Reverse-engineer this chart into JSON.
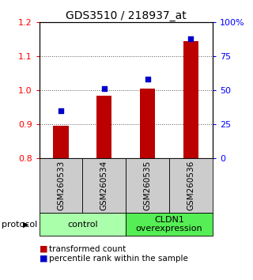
{
  "title": "GDS3510 / 218937_at",
  "samples": [
    "GSM260533",
    "GSM260534",
    "GSM260535",
    "GSM260536"
  ],
  "bar_values": [
    0.895,
    0.985,
    1.005,
    1.145
  ],
  "dot_percentiles": [
    35,
    51,
    58,
    88
  ],
  "ylim_left": [
    0.8,
    1.2
  ],
  "ylim_right": [
    0,
    100
  ],
  "yticks_left": [
    0.8,
    0.9,
    1.0,
    1.1,
    1.2
  ],
  "yticks_right": [
    0,
    25,
    50,
    75,
    100
  ],
  "bar_color": "#bb0000",
  "dot_color": "#0000cc",
  "bar_base": 0.8,
  "groups": [
    {
      "label": "control",
      "color": "#aaffaa"
    },
    {
      "label": "CLDN1\noverexpression",
      "color": "#55ee55"
    }
  ],
  "protocol_label": "protocol",
  "legend_bar": "transformed count",
  "legend_dot": "percentile rank within the sample",
  "bg_color": "#ffffff",
  "sample_box_color": "#cccccc",
  "title_fontsize": 10,
  "tick_fontsize": 8,
  "legend_fontsize": 7.5
}
